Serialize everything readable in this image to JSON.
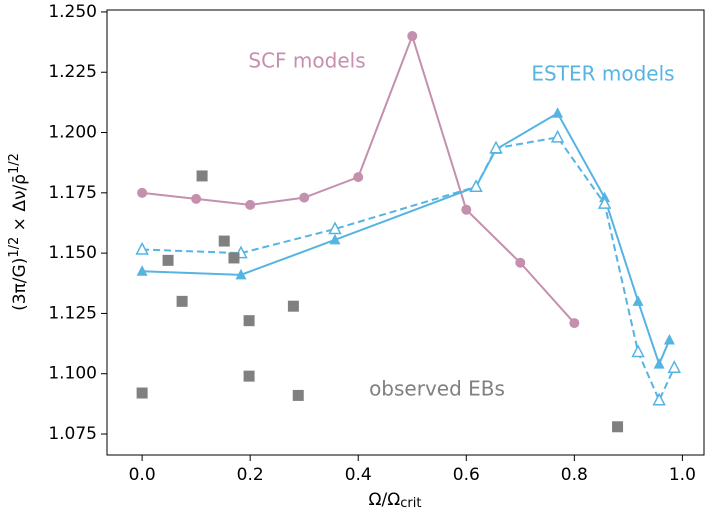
{
  "chart_data": {
    "type": "line",
    "x_label": [
      "Ω/Ω",
      "crit"
    ],
    "y_label": [
      "(3π/G)",
      "1/2",
      " × Δν/ρ̄",
      "1/2"
    ],
    "xlim": [
      -0.065,
      1.04
    ],
    "ylim": [
      1.0663,
      1.2508
    ],
    "xticks": [
      {
        "value": 0,
        "label": "0.0"
      },
      {
        "value": 0.2,
        "label": "0.2"
      },
      {
        "value": 0.4,
        "label": "0.4"
      },
      {
        "value": 0.6,
        "label": "0.6"
      },
      {
        "value": 0.8,
        "label": "0.8"
      },
      {
        "value": 1,
        "label": "1.0"
      }
    ],
    "yticks": [
      {
        "value": 1.075,
        "label": "1.075"
      },
      {
        "value": 1.1,
        "label": "1.100"
      },
      {
        "value": 1.125,
        "label": "1.125"
      },
      {
        "value": 1.15,
        "label": "1.150"
      },
      {
        "value": 1.175,
        "label": "1.175"
      },
      {
        "value": 1.2,
        "label": "1.200"
      },
      {
        "value": 1.225,
        "label": "1.225"
      },
      {
        "value": 1.25,
        "label": "1.250"
      }
    ],
    "series": [
      {
        "name": "SCF models",
        "color": "#c58fae",
        "linestyle": "solid",
        "marker": "circle",
        "x": [
          0,
          0.1,
          0.2,
          0.3,
          0.4,
          0.5,
          0.6,
          0.7,
          0.8
        ],
        "values": [
          1.175,
          1.1725,
          1.17,
          1.173,
          1.1815,
          1.24,
          1.168,
          1.146,
          1.121
        ]
      },
      {
        "name": "ESTER models",
        "color": "#56b4e3",
        "linestyle": "solid",
        "marker": "triangle",
        "x": [
          0,
          0.183,
          0.357,
          0.618,
          0.655,
          0.769,
          0.856,
          0.918,
          0.957,
          0.976
        ],
        "values": [
          1.1425,
          1.141,
          1.1555,
          1.1775,
          1.193,
          1.208,
          1.173,
          1.13,
          1.104,
          1.114
        ]
      },
      {
        "name": null,
        "color": "#56b4e3",
        "linestyle": "dashed",
        "marker": "triangle-open",
        "x": [
          0,
          0.183,
          0.357,
          0.618,
          0.655,
          0.769,
          0.856,
          0.918,
          0.957,
          0.985
        ],
        "values": [
          1.1515,
          1.15,
          1.16,
          1.1775,
          1.1935,
          1.198,
          1.1705,
          1.109,
          1.089,
          1.1025
        ]
      },
      {
        "name": "observed EBs",
        "color": "#808080",
        "linestyle": "none",
        "marker": "square",
        "x": [
          0,
          0.048,
          0.074,
          0.111,
          0.152,
          0.17,
          0.198,
          0.198,
          0.28,
          0.289,
          0.88
        ],
        "values": [
          1.092,
          1.147,
          1.13,
          1.182,
          1.155,
          1.148,
          1.122,
          1.099,
          1.128,
          1.091,
          1.078
        ]
      }
    ]
  }
}
